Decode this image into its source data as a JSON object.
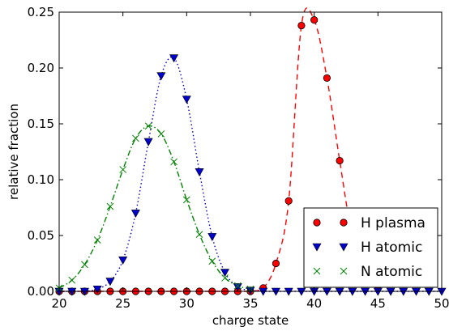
{
  "chart_data": {
    "type": "scatter",
    "xlabel": "charge state",
    "ylabel": "relative fraction",
    "xlim": [
      20,
      50
    ],
    "ylim": [
      0,
      0.25
    ],
    "xticks": [
      "20",
      "25",
      "30",
      "35",
      "40",
      "45",
      "50"
    ],
    "yticks": [
      "0.00",
      "0.05",
      "0.10",
      "0.15",
      "0.20",
      "0.25"
    ],
    "legend_position": "bottom-right",
    "grid": false,
    "series": [
      {
        "name": "H plasma",
        "marker": "circle",
        "color": "#ff0000",
        "fit_style": "dashed",
        "x": [
          20,
          21,
          22,
          23,
          24,
          25,
          26,
          27,
          28,
          29,
          30,
          31,
          32,
          33,
          34,
          35,
          36,
          37,
          38,
          39,
          40,
          41,
          42,
          43,
          44,
          45
        ],
        "y": [
          0,
          0,
          0,
          0,
          0,
          0,
          0,
          0,
          0,
          0,
          0,
          0,
          0,
          0,
          0,
          0,
          0.003,
          0.025,
          0.081,
          0.238,
          0.243,
          0.191,
          0.117,
          0.048,
          0.012,
          0.005
        ]
      },
      {
        "name": "H atomic",
        "marker": "triangle-down",
        "color": "#0000cc",
        "fit_style": "dotted",
        "x": [
          20,
          21,
          22,
          23,
          24,
          25,
          26,
          27,
          28,
          29,
          30,
          31,
          32,
          33,
          34,
          35,
          36,
          37,
          38,
          39,
          40,
          41,
          42,
          43,
          44,
          45,
          46,
          47,
          48,
          49,
          50
        ],
        "y": [
          0,
          0,
          0,
          0.002,
          0.009,
          0.028,
          0.07,
          0.134,
          0.193,
          0.209,
          0.172,
          0.107,
          0.049,
          0.017,
          0.004,
          0.001,
          0,
          0,
          0,
          0,
          0,
          0,
          0,
          0,
          0,
          0,
          0,
          0,
          0,
          0,
          0
        ]
      },
      {
        "name": "N atomic",
        "marker": "x",
        "color": "#008000",
        "fit_style": "dashdot",
        "x": [
          20,
          21,
          22,
          23,
          24,
          25,
          26,
          27,
          28,
          29,
          30,
          31,
          32,
          33,
          34,
          35
        ],
        "y": [
          0.003,
          0.01,
          0.024,
          0.046,
          0.076,
          0.109,
          0.137,
          0.148,
          0.141,
          0.116,
          0.082,
          0.051,
          0.027,
          0.012,
          0.005,
          0.002
        ]
      }
    ]
  }
}
